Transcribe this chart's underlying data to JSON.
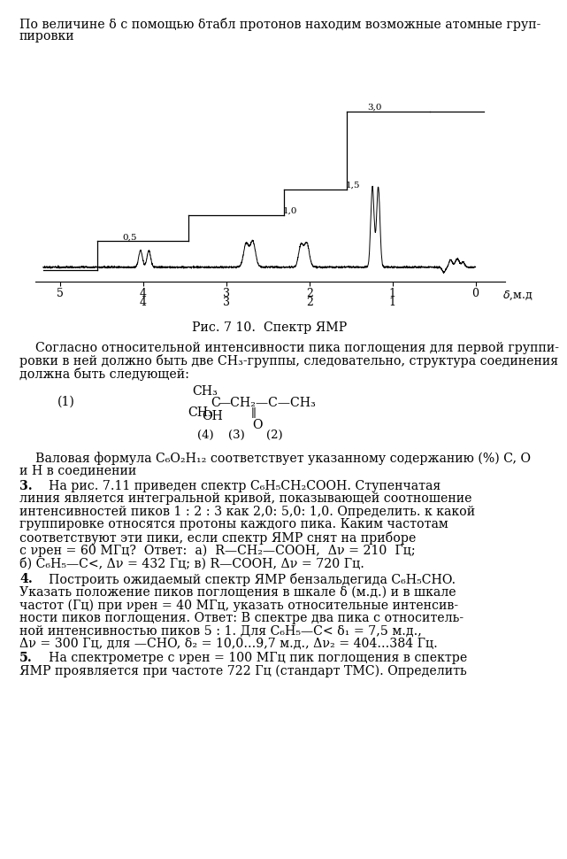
{
  "background": "#ffffff",
  "text_color": "#000000",
  "line1": "По величине δ с помощью δтабл протонов находим возможные атомные груп-",
  "line2": "пировки",
  "fig_caption": "Рис. 7 10.  Спектр ЯМР",
  "p1l1": "    Согласно относительной интенсивности пика поглощения для первой группи-",
  "p1l2": "ровки в ней должно быть две CH₃-группы, следовательно, структура соединения",
  "p1l3": "должна быть следующей:",
  "p2l1": "    Валовая формула C₆O₂H₁₂ соответствует указанному содержанию (%) C, O",
  "p2l2": "и H в соединении",
  "p3l1": "    На рис. 7.11 приведен спектр C₆H₅CH₂COOH. Ступенчатая",
  "p3l2": "линия является интегральной кривой, показывающей соотношение",
  "p3l3": "интенсивностей пиков 1 : 2 : 3 как 2,0: 5,0: 1,0. Определить. к какой",
  "p3l4": "группировке относятся протоны каждого пика. Каким частотам",
  "p3l5": "соответствуют эти пики, если спектр ЯМР снят на приборе",
  "p3l6": "с νрен = 60 МГц?  Ответ:  a)  R—CH₂—COOH,  Δν = 210  Гц;",
  "p3l7": "б) C₆H₅—C<, Δν = 432 Гц; в) R—COOH, Δν = 720 Гц.",
  "p4l1": "    Построить ожидаемый спектр ЯМР бензальдегида C₆H₅CHO.",
  "p4l2": "Указать положение пиков поглощения в шкале δ (м.д.) и в шкале",
  "p4l3": "частот (Гц) при νрен = 40 МГц, указать относительные интенсив-",
  "p4l4": "ности пиков поглощения. Ответ: В спектре два пика с относитель-",
  "p4l5": "ной интенсивностью пиков 5 : 1. Для C₆H₅—C< δ₁ = 7,5 м.д.,",
  "p4l6": "Δν = 300 Гц, для —CHO, δ₂ = 10,0...9,7 м.д., Δν₂ = 404...384 Гц.",
  "p5l1": "    На спектрометре с νрен = 100 МГц пик поглощения в спектре",
  "p5l2": "ЯМР проявляется при частоте 722 Гц (стандарт ТМС). Определить"
}
